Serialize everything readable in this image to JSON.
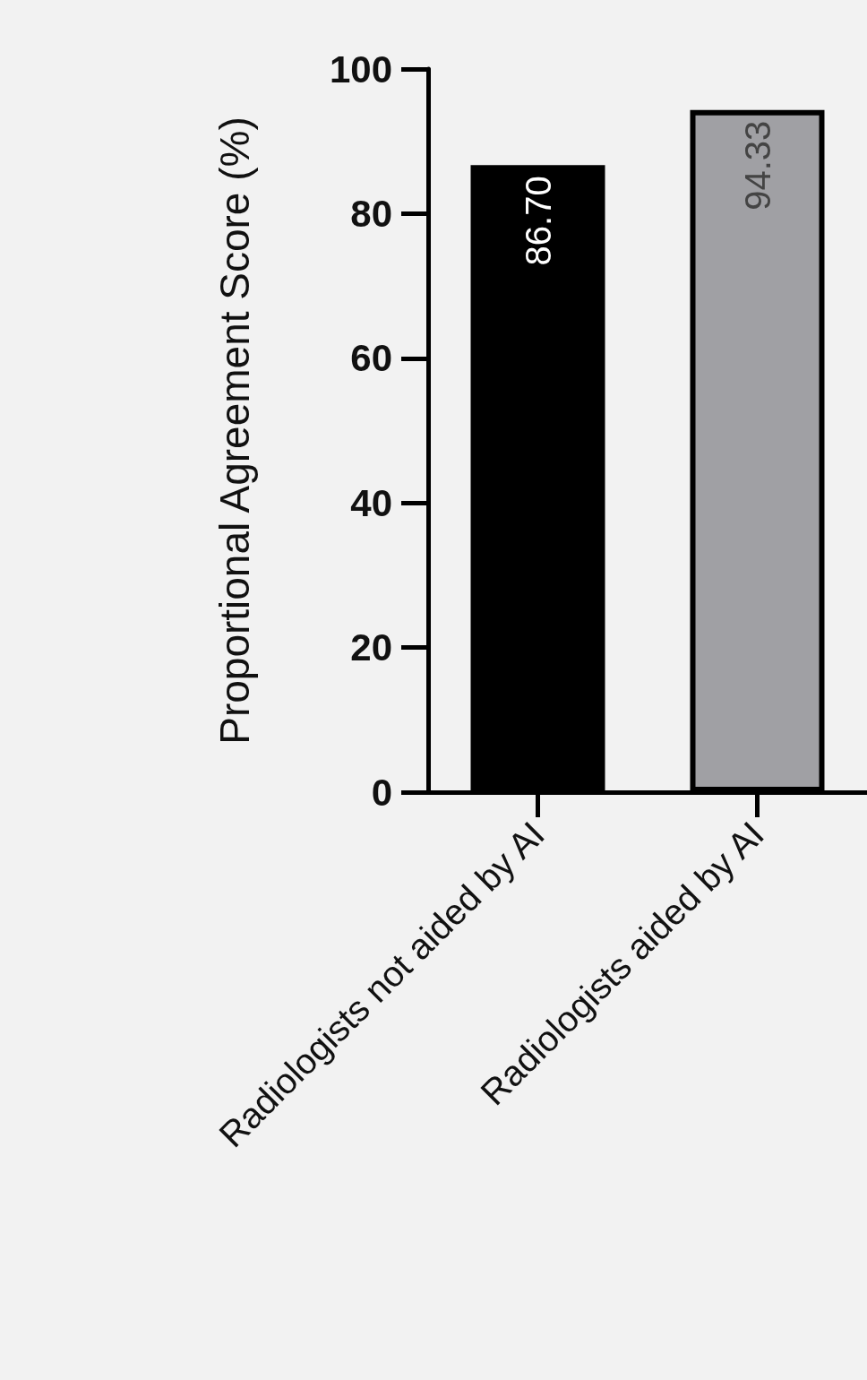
{
  "chart_data": {
    "type": "bar",
    "ylabel": "Proportional Agreement Score (%)",
    "categories": [
      "Radiologists not aided by AI",
      "Radiologists aided by AI"
    ],
    "values": [
      86.7,
      94.33
    ],
    "colors": [
      "#000000",
      "#a0a0a4"
    ],
    "value_labels": [
      "86.70",
      "94.33"
    ],
    "ylim": [
      0,
      100
    ],
    "yticks": [
      0,
      20,
      40,
      60,
      80,
      100
    ],
    "grid": false
  }
}
